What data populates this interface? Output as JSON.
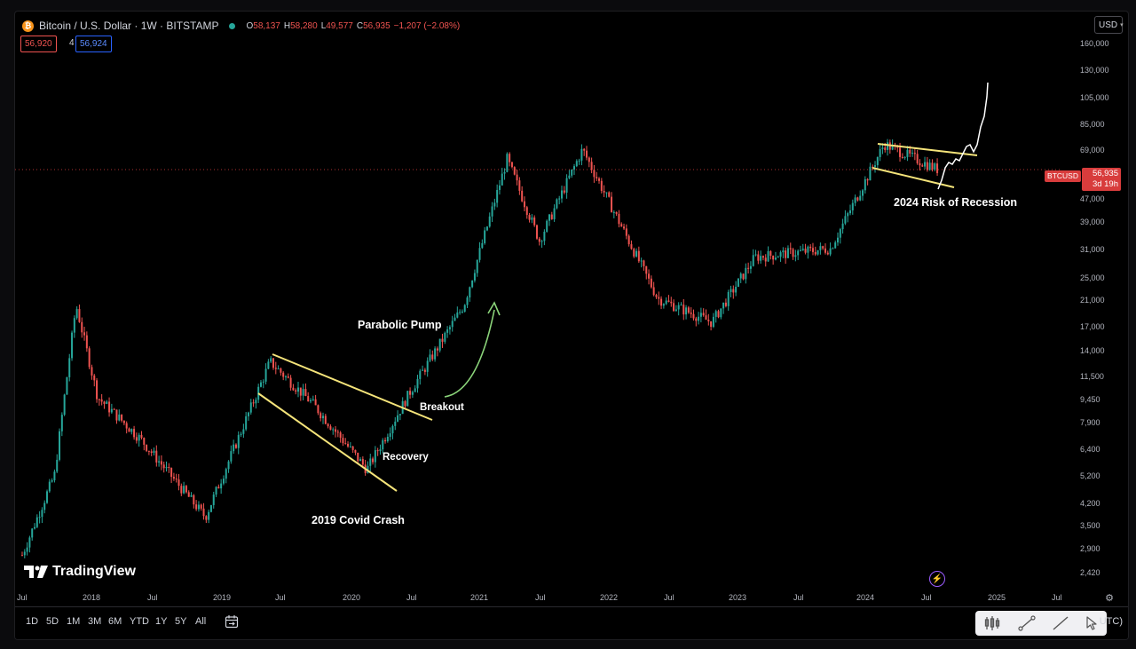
{
  "header": {
    "symbol_icon": "bitcoin-coin-icon",
    "title": "Bitcoin / U.S. Dollar · 1W · BITSTAMP",
    "ohlc": {
      "o_label": "O",
      "o": "58,137",
      "h_label": "H",
      "h": "58,280",
      "l_label": "L",
      "l": "49,577",
      "c_label": "C",
      "c": "56,935",
      "change": "−1,207 (−2.08%)"
    },
    "sell_price": "56,920",
    "spread": "4",
    "buy_price": "56,924",
    "currency": "USD"
  },
  "price_axis": {
    "labels": [
      "160,000",
      "130,000",
      "105,000",
      "85,000",
      "69,000",
      "47,000",
      "39,000",
      "31,000",
      "25,000",
      "21,000",
      "17,000",
      "14,000",
      "11,500",
      "9,450",
      "7,900",
      "6,400",
      "5,200",
      "4,200",
      "3,500",
      "2,900",
      "2,420"
    ],
    "current_symbol": "BTCUSD",
    "current_price": "56,935",
    "countdown": "3d 19h"
  },
  "time_axis": {
    "labels": [
      "Jul",
      "2018",
      "Jul",
      "2019",
      "Jul",
      "2020",
      "Jul",
      "2021",
      "Jul",
      "2022",
      "Jul",
      "2023",
      "Jul",
      "2024",
      "Jul",
      "2025",
      "Jul"
    ]
  },
  "annotations": {
    "parabolic": "Parabolic Pump",
    "breakout": "Breakout",
    "recovery": "Recovery",
    "covid": "2019 Covid Crash",
    "recession": "2024 Risk of Recession"
  },
  "watermark": "TradingView",
  "toolbar": {
    "timeframes": [
      "1D",
      "5D",
      "1M",
      "3M",
      "6M",
      "YTD",
      "1Y",
      "5Y",
      "All"
    ],
    "utc": "UTC)",
    "icons": [
      "calendar-range-icon",
      "candles-icon",
      "trendline-icon",
      "line-tool-icon",
      "cursor-icon"
    ]
  },
  "colors": {
    "up": "#26a69a",
    "down": "#ef5350",
    "trendline": "#f5e47a",
    "arrow": "#8bd47a",
    "projection": "#ffffff",
    "price_line": "#d83c3c"
  },
  "chart_data": {
    "type": "candlestick",
    "title": "Bitcoin / U.S. Dollar · 1W · BITSTAMP",
    "y_scale": "log",
    "ylim": [
      2200,
      175000
    ],
    "x": [
      "2017-07",
      "2017-10",
      "2017-12",
      "2018-02",
      "2018-06",
      "2018-12",
      "2019-06",
      "2019-10",
      "2020-03",
      "2020-07",
      "2020-12",
      "2021-04",
      "2021-07",
      "2021-11",
      "2022-06",
      "2022-11",
      "2023-03",
      "2023-10",
      "2024-03",
      "2024-08"
    ],
    "close": [
      2500,
      4800,
      19000,
      9000,
      6400,
      3400,
      12000,
      8500,
      5000,
      9400,
      19000,
      62000,
      32000,
      67000,
      20000,
      16500,
      28000,
      30000,
      70000,
      56935
    ]
  }
}
